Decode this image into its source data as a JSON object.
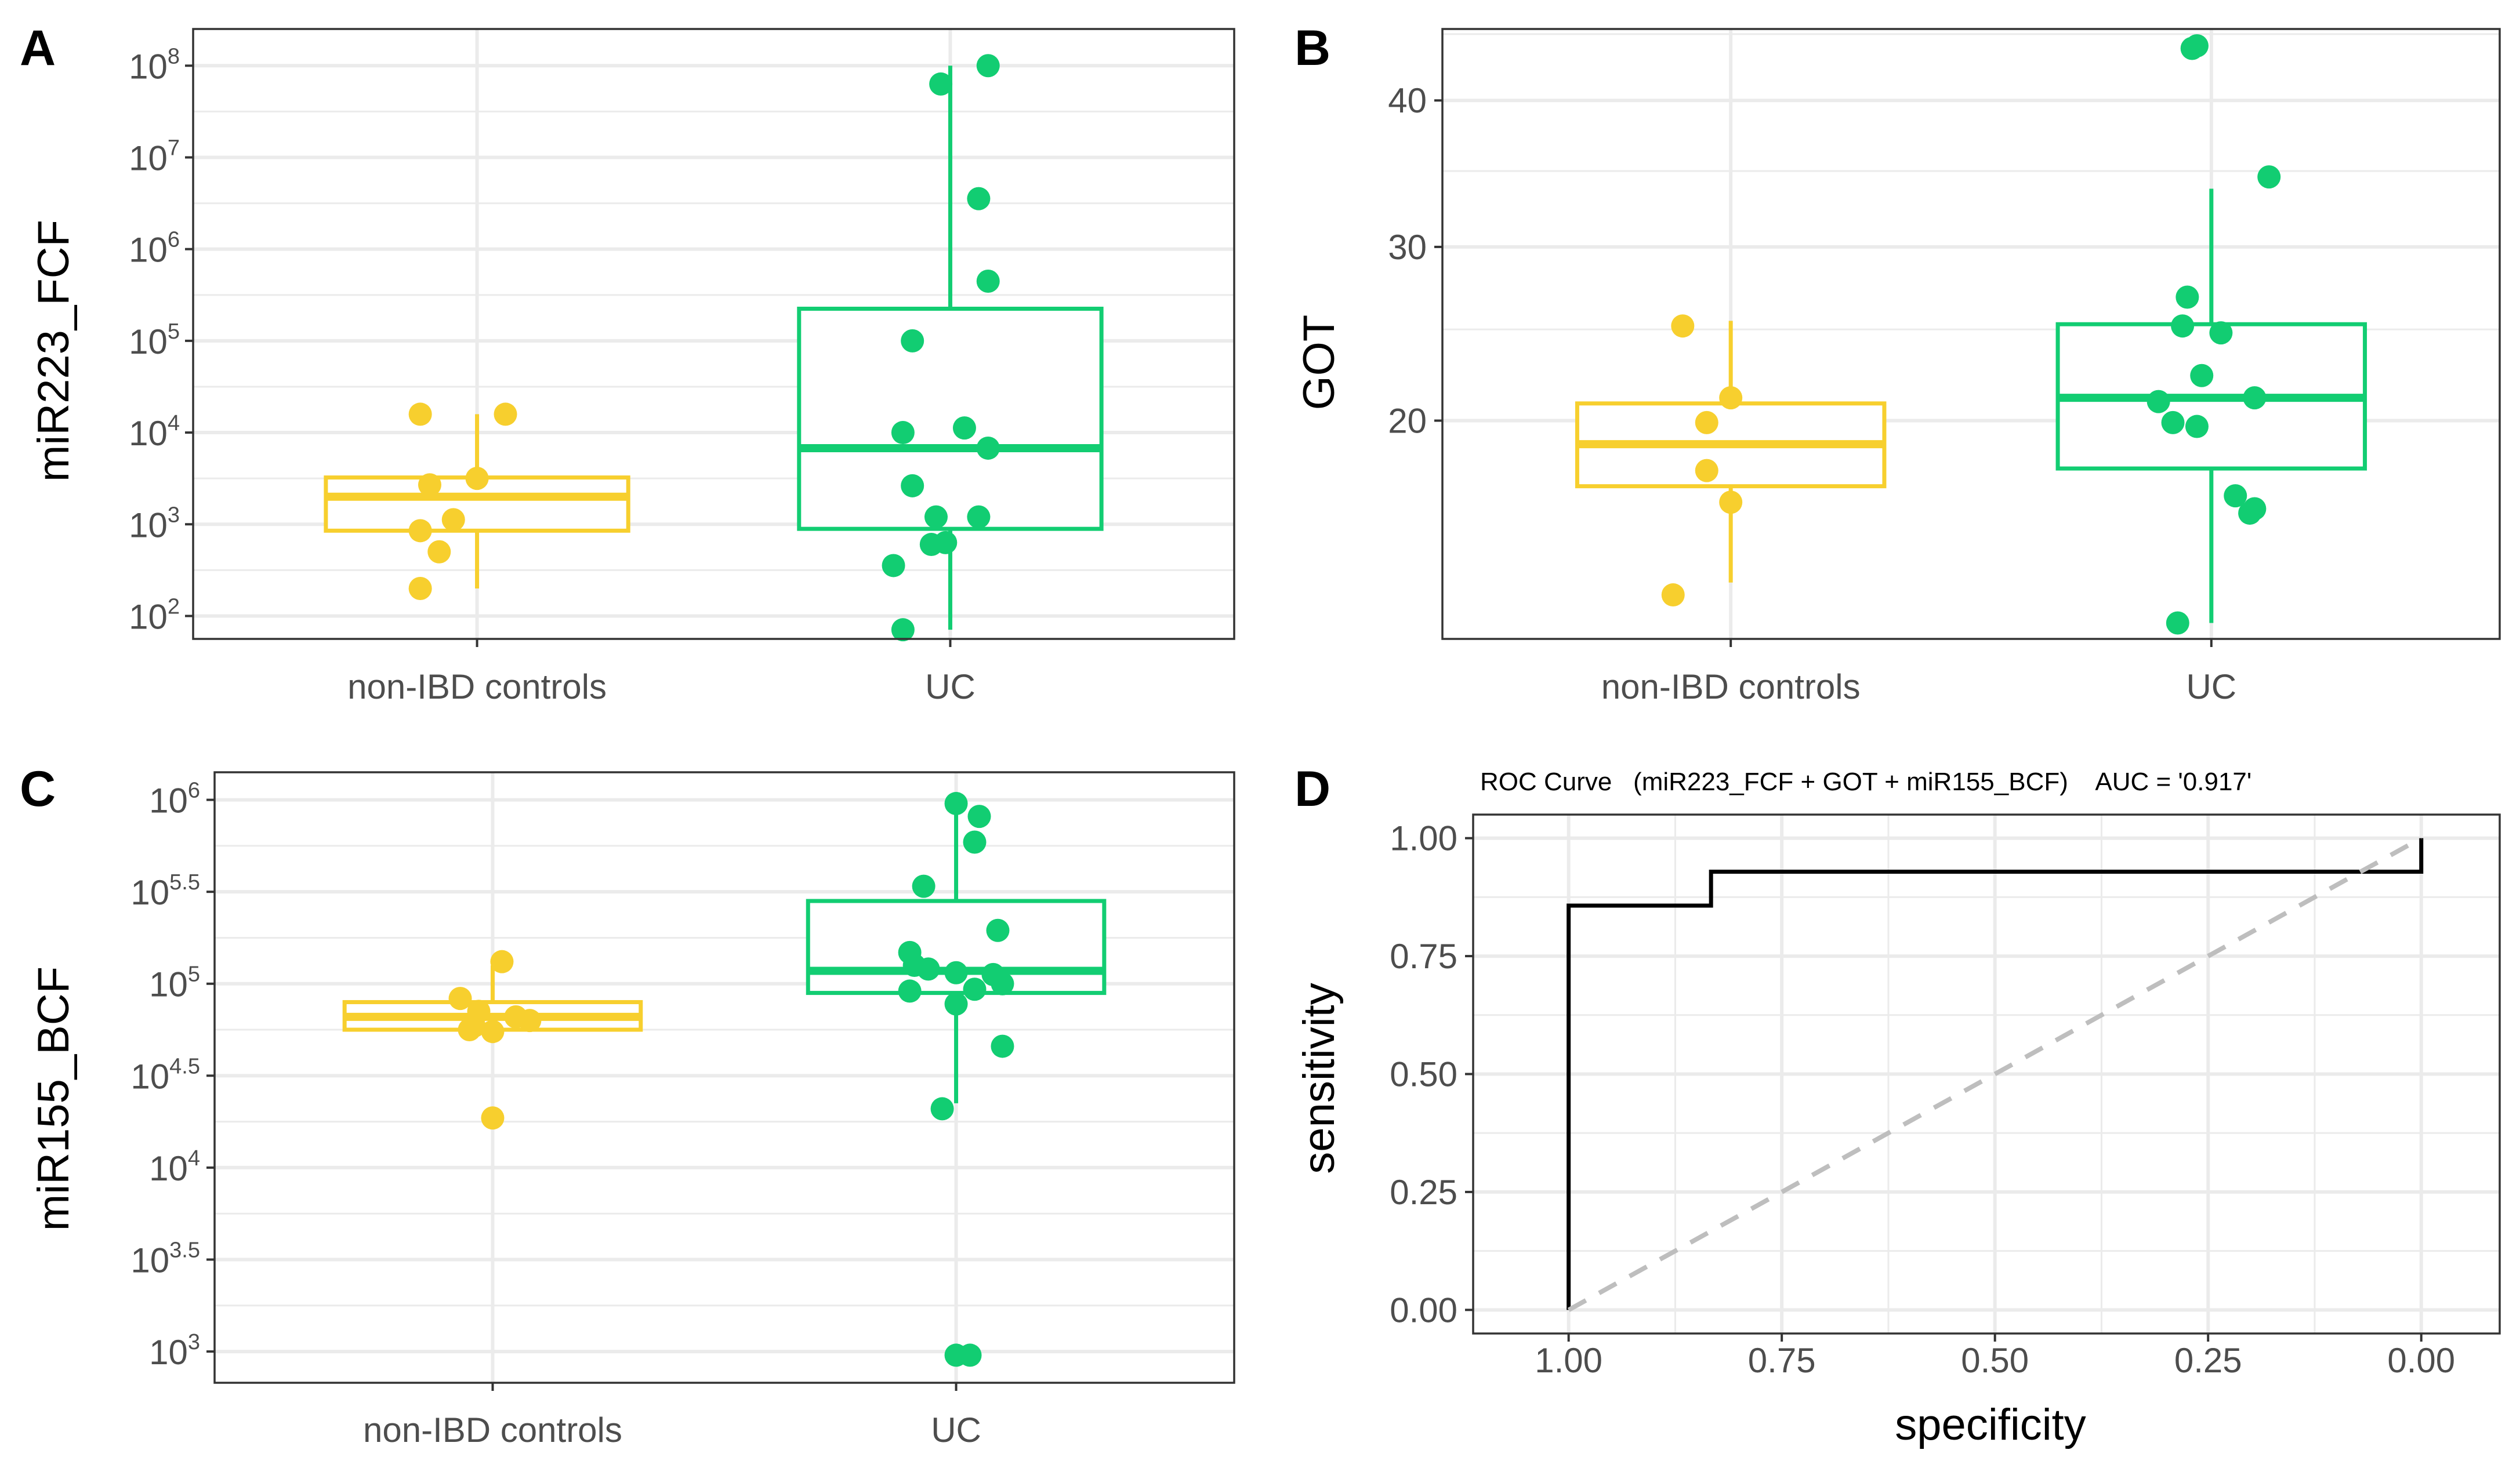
{
  "colors": {
    "control": "#F7CF2E",
    "uc": "#12CD72",
    "roc_line": "#000000",
    "diagonal": "#BEBEBE"
  },
  "chart_data": [
    {
      "panel": "A",
      "type": "boxplot",
      "scale": "log10",
      "ylabel": "miR223_FCF",
      "categories": [
        "non-IBD controls",
        "UC"
      ],
      "ylim_log10": [
        1.75,
        8.4
      ],
      "y_ticks": [
        {
          "base": "10",
          "exp": "2",
          "v": 2
        },
        {
          "base": "10",
          "exp": "3",
          "v": 3
        },
        {
          "base": "10",
          "exp": "4",
          "v": 4
        },
        {
          "base": "10",
          "exp": "5",
          "v": 5
        },
        {
          "base": "10",
          "exp": "6",
          "v": 6
        },
        {
          "base": "10",
          "exp": "7",
          "v": 7
        },
        {
          "base": "10",
          "exp": "8",
          "v": 8
        }
      ],
      "boxes": [
        {
          "group": "non-IBD controls",
          "whisker_low": 2.3,
          "q1": 2.93,
          "median": 3.3,
          "q3": 3.51,
          "whisker_high": 4.2
        },
        {
          "group": "UC",
          "whisker_low": 1.85,
          "q1": 2.95,
          "median": 3.83,
          "q3": 5.35,
          "whisker_high": 8.0
        }
      ],
      "points": [
        {
          "group": "non-IBD controls",
          "values": [
            4.2,
            4.2,
            3.5,
            3.43,
            3.05,
            2.93,
            2.7,
            2.3
          ],
          "jitter": [
            -0.12,
            0.06,
            0.0,
            -0.1,
            -0.05,
            -0.12,
            -0.08,
            -0.12
          ]
        },
        {
          "group": "UC",
          "values": [
            8.0,
            7.8,
            6.55,
            5.65,
            5.0,
            4.05,
            4.0,
            3.83,
            3.42,
            3.08,
            3.08,
            2.8,
            2.78,
            2.55,
            1.85
          ],
          "jitter": [
            0.08,
            -0.02,
            0.06,
            0.08,
            -0.08,
            0.03,
            -0.1,
            0.08,
            -0.08,
            -0.03,
            0.06,
            -0.01,
            -0.04,
            -0.12,
            -0.1
          ]
        }
      ]
    },
    {
      "panel": "B",
      "type": "boxplot",
      "scale": "sqrt",
      "ylabel": "GOT",
      "categories": [
        "non-IBD controls",
        "UC"
      ],
      "ylim": [
        10.3,
        45.4
      ],
      "y_ticks": [
        {
          "label": "20",
          "v": 20
        },
        {
          "label": "30",
          "v": 30
        },
        {
          "label": "40",
          "v": 40
        }
      ],
      "y_minor": [
        10,
        25,
        35,
        45
      ],
      "boxes": [
        {
          "group": "non-IBD controls",
          "whisker_low": 12.5,
          "q1": 16.75,
          "median": 18.8,
          "q3": 20.9,
          "whisker_high": 25.5
        },
        {
          "group": "UC",
          "whisker_low": 10.9,
          "q1": 17.6,
          "median": 21.2,
          "q3": 25.3,
          "whisker_high": 33.8
        }
      ],
      "points": [
        {
          "group": "non-IBD controls",
          "values": [
            25.2,
            21.2,
            19.9,
            17.5,
            16.0,
            12.0
          ],
          "jitter": [
            -0.1,
            0.0,
            -0.05,
            -0.05,
            0.0,
            -0.12
          ]
        },
        {
          "group": "UC",
          "values": [
            44.1,
            43.9,
            34.6,
            26.9,
            25.2,
            24.8,
            22.4,
            21.2,
            21.0,
            19.9,
            19.7,
            16.3,
            15.7,
            15.5,
            10.9
          ],
          "jitter": [
            -0.03,
            -0.04,
            0.12,
            -0.05,
            -0.06,
            0.02,
            -0.02,
            0.09,
            -0.11,
            -0.08,
            -0.03,
            0.05,
            0.09,
            0.08,
            -0.07
          ]
        }
      ]
    },
    {
      "panel": "C",
      "type": "boxplot",
      "scale": "log10",
      "ylabel": "miR155_BCF",
      "categories": [
        "non-IBD controls",
        "UC"
      ],
      "ylim_log10": [
        2.83,
        6.15
      ],
      "y_ticks": [
        {
          "base": "10",
          "exp": "3",
          "v": 3
        },
        {
          "base": "10",
          "exp": "3.5",
          "v": 3.5
        },
        {
          "base": "10",
          "exp": "4",
          "v": 4
        },
        {
          "base": "10",
          "exp": "4.5",
          "v": 4.5
        },
        {
          "base": "10",
          "exp": "5",
          "v": 5
        },
        {
          "base": "10",
          "exp": "5.5",
          "v": 5.5
        },
        {
          "base": "10",
          "exp": "6",
          "v": 6
        }
      ],
      "boxes": [
        {
          "group": "non-IBD controls",
          "whisker_low": 4.75,
          "q1": 4.75,
          "median": 4.82,
          "q3": 4.9,
          "whisker_high": 5.1
        },
        {
          "group": "UC",
          "whisker_low": 4.35,
          "q1": 4.95,
          "median": 5.07,
          "q3": 5.45,
          "whisker_high": 5.98
        }
      ],
      "points": [
        {
          "group": "non-IBD controls",
          "values": [
            5.12,
            4.92,
            4.85,
            4.82,
            4.8,
            4.77,
            4.75,
            4.74,
            4.27
          ],
          "jitter": [
            0.02,
            -0.07,
            -0.03,
            0.05,
            0.08,
            -0.04,
            -0.05,
            0.0,
            0.0
          ]
        },
        {
          "group": "UC",
          "values": [
            5.98,
            5.91,
            5.77,
            5.53,
            5.29,
            5.17,
            5.1,
            5.08,
            5.06,
            5.05,
            5.0,
            4.96,
            4.97,
            4.89,
            4.66,
            4.32,
            2.98,
            2.98
          ],
          "jitter": [
            0.0,
            0.05,
            0.04,
            -0.07,
            0.09,
            -0.1,
            -0.09,
            -0.06,
            0.0,
            0.08,
            0.1,
            -0.1,
            0.04,
            0.0,
            0.1,
            -0.03,
            0.0,
            0.03
          ]
        }
      ]
    },
    {
      "panel": "D",
      "type": "line",
      "title": "ROC Curve   (miR223_FCF + GOT + miR155_BCF)    AUC = '0.917'",
      "xlabel": "specificity",
      "ylabel": "sensitivity",
      "xlim": [
        1.112,
        -0.092
      ],
      "ylim": [
        -0.05,
        1.05
      ],
      "x_ticks": [
        "1.00",
        "0.75",
        "0.50",
        "0.25",
        "0.00"
      ],
      "y_ticks": [
        "0.00",
        "0.25",
        "0.50",
        "0.75",
        "1.00"
      ],
      "series": [
        {
          "name": "roc",
          "specificity": [
            1.0,
            1.0,
            0.833,
            0.833,
            0.0,
            0.0
          ],
          "sensitivity": [
            0.0,
            0.857,
            0.857,
            0.929,
            0.929,
            1.0
          ]
        },
        {
          "name": "chance",
          "specificity": [
            1.0,
            0.0
          ],
          "sensitivity": [
            0.0,
            1.0
          ]
        }
      ]
    }
  ]
}
